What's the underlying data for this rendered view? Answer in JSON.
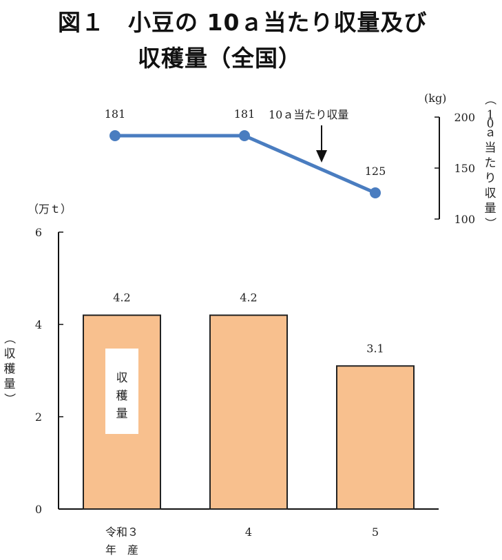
{
  "title": {
    "line1": "図１　小豆の 10ａ当たり収量及び",
    "line2": "収穫量（全国）"
  },
  "colors": {
    "bar_fill": "#F8C08E",
    "bar_stroke": "#222222",
    "line": "#4A7DC0",
    "axis": "#111111"
  },
  "chart_data": [
    {
      "type": "bar",
      "categories": [
        "令和３\n年　産",
        "4",
        "5"
      ],
      "values": [
        4.2,
        4.2,
        3.1
      ],
      "data_labels": [
        "4.2",
        "4.2",
        "3.1"
      ],
      "unit": "（万ｔ）",
      "ylabel": "（収穫量）",
      "ylim": [
        0,
        6
      ],
      "yticks": [
        0,
        2,
        4,
        6
      ],
      "series_label": "収穫量",
      "grid": false
    },
    {
      "type": "line",
      "categories": [
        "令和３\n年　産",
        "4",
        "5"
      ],
      "values": [
        181,
        181,
        125
      ],
      "data_labels": [
        "181",
        "181",
        "125"
      ],
      "unit": "(kg)",
      "ylabel": "（10ａ当たり収量）",
      "ylim": [
        100,
        200
      ],
      "yticks": [
        100,
        150,
        200
      ],
      "annotation": "10ａ当たり収量",
      "axis_side": "right",
      "grid": false
    }
  ]
}
